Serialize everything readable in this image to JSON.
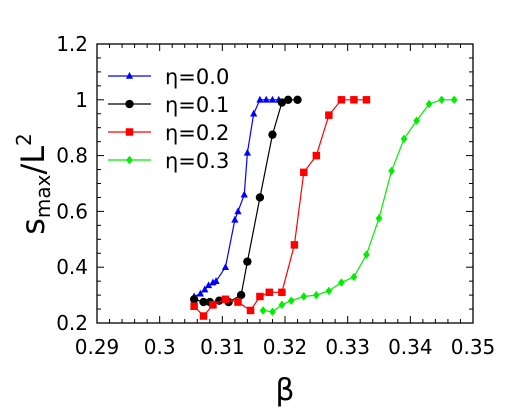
{
  "chart_data": {
    "type": "line",
    "title": "",
    "xlabel": "β",
    "ylabel": {
      "base": "s",
      "sub": "max",
      "mid": "/L",
      "sup": "2"
    },
    "xlim": [
      0.29,
      0.35
    ],
    "ylim": [
      0.2,
      1.2
    ],
    "xticks": [
      0.29,
      0.3,
      0.31,
      0.32,
      0.33,
      0.34,
      0.35
    ],
    "xtick_labels": [
      "0.29",
      "0.3",
      "0.31",
      "0.32",
      "0.33",
      "0.34",
      "0.35"
    ],
    "yticks": [
      0.2,
      0.4,
      0.6,
      0.8,
      1.0,
      1.2
    ],
    "ytick_labels": [
      "0.2",
      "0.4",
      "0.6",
      "0.8",
      "1",
      "1.2"
    ],
    "grid": false,
    "legend_position": "top-left",
    "series": [
      {
        "name": "η=0.0",
        "color": "#0000ff",
        "marker": "triangle",
        "x": [
          0.3055,
          0.3065,
          0.3072,
          0.3078,
          0.3085,
          0.309,
          0.3105,
          0.312,
          0.3125,
          0.3135,
          0.314,
          0.315,
          0.316,
          0.317,
          0.318,
          0.319
        ],
        "y": [
          0.295,
          0.305,
          0.32,
          0.335,
          0.345,
          0.35,
          0.4,
          0.57,
          0.6,
          0.66,
          0.81,
          0.95,
          1.0,
          1.0,
          1.0,
          1.0
        ]
      },
      {
        "name": "η=0.1",
        "color": "#000000",
        "marker": "circle",
        "x": [
          0.3055,
          0.307,
          0.308,
          0.3095,
          0.311,
          0.313,
          0.314,
          0.316,
          0.318,
          0.3195,
          0.3205,
          0.322
        ],
        "y": [
          0.285,
          0.275,
          0.275,
          0.28,
          0.275,
          0.3,
          0.42,
          0.65,
          0.875,
          0.99,
          1.0,
          1.0
        ]
      },
      {
        "name": "η=0.2",
        "color": "#ff0000",
        "marker": "square",
        "x": [
          0.3055,
          0.307,
          0.3085,
          0.3105,
          0.3125,
          0.3145,
          0.316,
          0.3175,
          0.3195,
          0.3215,
          0.323,
          0.325,
          0.327,
          0.329,
          0.331,
          0.333
        ],
        "y": [
          0.26,
          0.225,
          0.265,
          0.285,
          0.275,
          0.245,
          0.295,
          0.31,
          0.31,
          0.48,
          0.74,
          0.8,
          0.945,
          1.0,
          1.0,
          1.0
        ]
      },
      {
        "name": "η=0.3",
        "color": "#00ee00",
        "marker": "diamond",
        "x": [
          0.3165,
          0.318,
          0.3195,
          0.321,
          0.323,
          0.325,
          0.327,
          0.329,
          0.331,
          0.333,
          0.335,
          0.337,
          0.339,
          0.341,
          0.343,
          0.345,
          0.347
        ],
        "y": [
          0.245,
          0.24,
          0.265,
          0.28,
          0.295,
          0.3,
          0.315,
          0.345,
          0.365,
          0.445,
          0.575,
          0.745,
          0.86,
          0.925,
          0.985,
          1.0,
          1.0
        ]
      }
    ]
  }
}
